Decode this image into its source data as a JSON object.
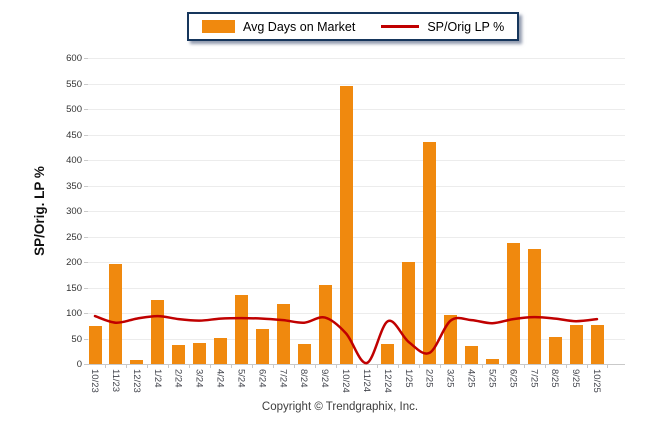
{
  "legend": {
    "items": [
      {
        "label": "Avg Days on Market",
        "swatch": "bar",
        "color": "#F0890E"
      },
      {
        "label": "SP/Orig LP %",
        "swatch": "line",
        "color": "#C00000"
      }
    ]
  },
  "y_axis_title": "SP/Orig. LP %",
  "copyright": "Copyright © Trendgraphix, Inc.",
  "colors": {
    "bar": "#F0890E",
    "line": "#C00000",
    "gridline": "#ECECEC",
    "axis": "#C9C9C9",
    "legend_border": "#16365C"
  },
  "chart_data": {
    "type": "combo",
    "title": "",
    "xlabel": "",
    "ylabel": "SP/Orig. LP %",
    "ylim": [
      0,
      600
    ],
    "ytick_step": 50,
    "yticks": [
      0,
      50,
      100,
      150,
      200,
      250,
      300,
      350,
      400,
      450,
      500,
      550,
      600
    ],
    "grid": true,
    "legend_position": "top-center",
    "categories": [
      "10/23",
      "11/23",
      "12/23",
      "1/24",
      "2/24",
      "3/24",
      "4/24",
      "5/24",
      "6/24",
      "7/24",
      "8/24",
      "9/24",
      "10/24",
      "11/24",
      "12/24",
      "1/25",
      "2/25",
      "3/25",
      "4/25",
      "5/25",
      "6/25",
      "7/25",
      "8/25",
      "9/25",
      "10/25"
    ],
    "series": [
      {
        "name": "Avg Days on Market",
        "type": "bar",
        "color": "#F0890E",
        "values": [
          74,
          197,
          8,
          126,
          38,
          42,
          51,
          136,
          69,
          118,
          40,
          154,
          545,
          0,
          40,
          201,
          435,
          97,
          36,
          9,
          237,
          225,
          53,
          77,
          76
        ]
      },
      {
        "name": "SP/Orig LP %",
        "type": "line",
        "color": "#C00000",
        "values": [
          94,
          81,
          89,
          94,
          88,
          85,
          89,
          90,
          89,
          86,
          81,
          91,
          60,
          2,
          84,
          43,
          22,
          85,
          86,
          80,
          88,
          92,
          89,
          84,
          88
        ]
      }
    ]
  }
}
